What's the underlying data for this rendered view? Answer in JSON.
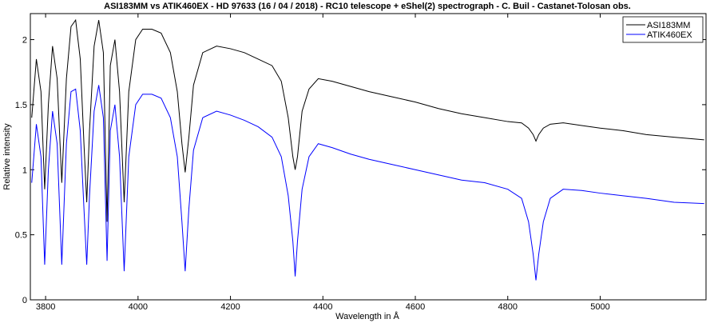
{
  "chart_data": {
    "type": "line",
    "title": "ASI183MM vs ATIK460EX - HD 97633 (16 / 04 / 2018) - RC10 telescope + eShel(2) spectrograph - C. Buil - Castanet-Tolosan obs.",
    "x_label": "Wavelength in Å",
    "y_label": "Relative intensity",
    "x": [
      3770,
      3780,
      3790,
      3798,
      3806,
      3815,
      3825,
      3835,
      3845,
      3855,
      3865,
      3875,
      3883,
      3889,
      3895,
      3905,
      3915,
      3925,
      3933,
      3940,
      3950,
      3960,
      3970,
      3980,
      3995,
      4010,
      4030,
      4050,
      4070,
      4085,
      4095,
      4102,
      4110,
      4120,
      4140,
      4170,
      4200,
      4230,
      4260,
      4290,
      4310,
      4325,
      4335,
      4340,
      4345,
      4355,
      4370,
      4390,
      4420,
      4460,
      4500,
      4550,
      4600,
      4650,
      4700,
      4750,
      4800,
      4830,
      4845,
      4855,
      4861,
      4867,
      4877,
      4892,
      4920,
      4960,
      5000,
      5050,
      5100,
      5160,
      5225
    ],
    "series": [
      {
        "name": "ASI183MM",
        "color": "#000000",
        "values": [
          1.4,
          1.85,
          1.6,
          0.85,
          1.5,
          1.95,
          1.7,
          0.9,
          1.7,
          2.1,
          2.15,
          1.85,
          1.2,
          0.75,
          1.3,
          1.95,
          2.15,
          1.9,
          0.6,
          1.8,
          2.0,
          1.6,
          0.75,
          1.6,
          2.0,
          2.08,
          2.08,
          2.05,
          1.9,
          1.6,
          1.2,
          0.98,
          1.25,
          1.65,
          1.9,
          1.95,
          1.93,
          1.9,
          1.85,
          1.8,
          1.68,
          1.4,
          1.1,
          1.0,
          1.1,
          1.45,
          1.62,
          1.7,
          1.68,
          1.64,
          1.6,
          1.56,
          1.52,
          1.47,
          1.43,
          1.4,
          1.37,
          1.36,
          1.32,
          1.27,
          1.22,
          1.27,
          1.32,
          1.35,
          1.36,
          1.34,
          1.32,
          1.3,
          1.27,
          1.25,
          1.23
        ]
      },
      {
        "name": "ATIK460EX",
        "color": "#0000ff",
        "values": [
          0.9,
          1.35,
          1.1,
          0.27,
          1.0,
          1.45,
          1.2,
          0.27,
          1.2,
          1.6,
          1.62,
          1.3,
          0.7,
          0.27,
          0.8,
          1.45,
          1.65,
          1.4,
          0.3,
          1.3,
          1.5,
          1.1,
          0.22,
          1.1,
          1.5,
          1.58,
          1.58,
          1.55,
          1.4,
          1.1,
          0.6,
          0.22,
          0.7,
          1.15,
          1.4,
          1.45,
          1.42,
          1.38,
          1.33,
          1.25,
          1.1,
          0.8,
          0.45,
          0.18,
          0.45,
          0.85,
          1.1,
          1.2,
          1.17,
          1.12,
          1.08,
          1.04,
          1.0,
          0.96,
          0.92,
          0.9,
          0.85,
          0.78,
          0.6,
          0.35,
          0.15,
          0.35,
          0.6,
          0.78,
          0.85,
          0.84,
          0.82,
          0.8,
          0.78,
          0.75,
          0.74
        ]
      }
    ],
    "xlim": [
      3767,
      5229
    ],
    "ylim": [
      0,
      2.2
    ],
    "xticks": [
      3800,
      4000,
      4200,
      4400,
      4600,
      4800,
      5000
    ],
    "yticks": [
      0,
      0.5,
      1,
      1.5,
      2
    ],
    "legend": "upper right",
    "grid": false
  }
}
